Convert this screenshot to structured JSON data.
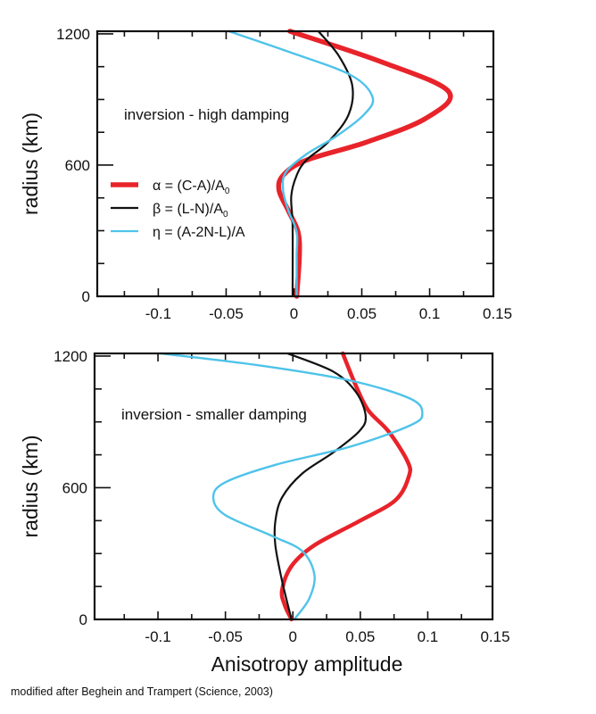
{
  "chart_data": [
    {
      "type": "line",
      "orientation": "profile (value on x, radius on y)",
      "annotation": "inversion - high damping",
      "ylabel": "radius (km)",
      "xlabel": "",
      "xlim": [
        -0.145,
        0.147
      ],
      "ylim": [
        0,
        1212
      ],
      "xticks": [
        -0.1,
        -0.05,
        0,
        0.05,
        0.1,
        0.15
      ],
      "xtick_labels": [
        "-0.1",
        "-0.05",
        "0",
        "0.05",
        "0.1",
        "0.15"
      ],
      "yticks": [
        0,
        600,
        1200
      ],
      "ytick_labels": [
        "0",
        "600",
        "1200"
      ],
      "grid": false,
      "legend_position": "left-middle",
      "series": [
        {
          "name": "α = (C-A)/A0",
          "legend_main": "α = (C-A)/A",
          "legend_sub": "0",
          "color": "#e8232a",
          "points": [
            [
              1212,
              -0.003
            ],
            [
              1073,
              0.064
            ],
            [
              936,
              0.114
            ],
            [
              813,
              0.097
            ],
            [
              704,
              0.053
            ],
            [
              622,
              0.009
            ],
            [
              553,
              -0.008
            ],
            [
              485,
              -0.011
            ],
            [
              390,
              -0.004
            ],
            [
              294,
              0.003
            ],
            [
              185,
              0.004
            ],
            [
              0,
              0.002
            ]
          ]
        },
        {
          "name": "β = (L-N)/A0",
          "legend_main": "β = (L-N)/A",
          "legend_sub": "0",
          "color": "#111111",
          "points": [
            [
              1212,
              0.018
            ],
            [
              1100,
              0.033
            ],
            [
              963,
              0.043
            ],
            [
              827,
              0.04
            ],
            [
              704,
              0.025
            ],
            [
              622,
              0.009
            ],
            [
              553,
              0.002
            ],
            [
              458,
              -0.002
            ],
            [
              321,
              -0.001
            ],
            [
              0,
              -0.001
            ]
          ]
        },
        {
          "name": "η = (A-2N-L)/A",
          "legend_main": "η = (A-2N-L)/A",
          "legend_sub": "",
          "color": "#4ec3ea",
          "points": [
            [
              1212,
              -0.048
            ],
            [
              1114,
              -0.002
            ],
            [
              1011,
              0.042
            ],
            [
              909,
              0.058
            ],
            [
              827,
              0.051
            ],
            [
              731,
              0.031
            ],
            [
              649,
              0.009
            ],
            [
              567,
              -0.006
            ],
            [
              485,
              -0.008
            ],
            [
              390,
              -0.004
            ],
            [
              294,
              0.002
            ],
            [
              185,
              0.002
            ],
            [
              0,
              0.002
            ]
          ]
        }
      ]
    },
    {
      "type": "line",
      "orientation": "profile (value on x, radius on y)",
      "annotation": "inversion - smaller damping",
      "ylabel": "radius (km)",
      "xlabel": "Anisotropy amplitude",
      "xlim": [
        -0.147,
        0.148
      ],
      "ylim": [
        0,
        1212
      ],
      "xticks": [
        -0.1,
        -0.05,
        0,
        0.05,
        0.1,
        0.15
      ],
      "xtick_labels": [
        "-0.1",
        "-0.05",
        "0",
        "0.05",
        "0.1",
        "0.15"
      ],
      "yticks": [
        0,
        600,
        1200
      ],
      "ytick_labels": [
        "0",
        "600",
        "1200"
      ],
      "grid": false,
      "series": [
        {
          "color": "#e8232a",
          "points": [
            [
              1212,
              0.037
            ],
            [
              1061,
              0.047
            ],
            [
              952,
              0.056
            ],
            [
              856,
              0.071
            ],
            [
              720,
              0.085
            ],
            [
              652,
              0.086
            ],
            [
              543,
              0.076
            ],
            [
              447,
              0.049
            ],
            [
              338,
              0.016
            ],
            [
              243,
              -0.001
            ],
            [
              134,
              -0.008
            ],
            [
              65,
              -0.006
            ],
            [
              0,
              -0.001
            ]
          ]
        },
        {
          "color": "#111111",
          "points": [
            [
              1212,
              -0.004
            ],
            [
              1129,
              0.03
            ],
            [
              1034,
              0.047
            ],
            [
              925,
              0.054
            ],
            [
              856,
              0.049
            ],
            [
              761,
              0.03
            ],
            [
              665,
              0.007
            ],
            [
              556,
              -0.008
            ],
            [
              447,
              -0.013
            ],
            [
              338,
              -0.013
            ],
            [
              175,
              -0.008
            ],
            [
              0,
              -0.001
            ]
          ]
        },
        {
          "color": "#4ec3ea",
          "points": [
            [
              1212,
              -0.098
            ],
            [
              1156,
              -0.023
            ],
            [
              1088,
              0.043
            ],
            [
              1006,
              0.087
            ],
            [
              938,
              0.096
            ],
            [
              884,
              0.087
            ],
            [
              788,
              0.043
            ],
            [
              706,
              -0.012
            ],
            [
              625,
              -0.05
            ],
            [
              556,
              -0.059
            ],
            [
              475,
              -0.05
            ],
            [
              379,
              -0.015
            ],
            [
              311,
              0.007
            ],
            [
              202,
              0.016
            ],
            [
              93,
              0.012
            ],
            [
              0,
              0.001
            ]
          ]
        }
      ]
    }
  ],
  "footer": "modified after Beghein and Trampert (Science, 2003)"
}
